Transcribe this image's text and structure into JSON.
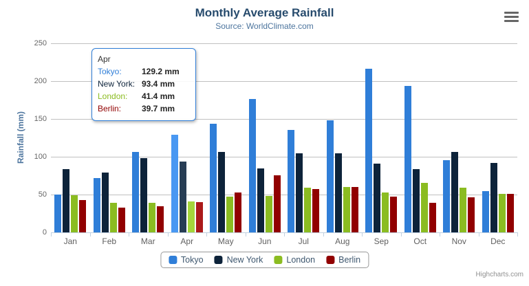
{
  "header": {
    "title": "Monthly Average Rainfall",
    "subtitle": "Source: WorldClimate.com"
  },
  "y_axis": {
    "title": "Rainfall (mm)",
    "tick_labels": [
      "0",
      "50",
      "100",
      "150",
      "200",
      "250"
    ]
  },
  "chart_data": {
    "type": "bar",
    "title": "Monthly Average Rainfall",
    "subtitle": "Source: WorldClimate.com",
    "xlabel": "",
    "ylabel": "Rainfall (mm)",
    "ylim": [
      0,
      250
    ],
    "ytick_interval": 50,
    "grid": true,
    "legend_position": "bottom",
    "categories": [
      "Jan",
      "Feb",
      "Mar",
      "Apr",
      "May",
      "Jun",
      "Jul",
      "Aug",
      "Sep",
      "Oct",
      "Nov",
      "Dec"
    ],
    "series": [
      {
        "name": "Tokyo",
        "color": "#2f7ed8",
        "hover_color": "#4998f2",
        "values": [
          49.9,
          71.5,
          106.4,
          129.2,
          144.0,
          176.0,
          135.6,
          148.5,
          216.4,
          194.1,
          95.6,
          54.4
        ]
      },
      {
        "name": "New York",
        "color": "#0d233a",
        "hover_color": "#273d54",
        "values": [
          83.6,
          78.8,
          98.5,
          93.4,
          106.0,
          84.5,
          105.0,
          104.3,
          91.2,
          83.5,
          106.6,
          92.3
        ]
      },
      {
        "name": "London",
        "color": "#8bbc21",
        "hover_color": "#a5d63b",
        "values": [
          48.9,
          38.8,
          39.3,
          41.4,
          47.0,
          48.3,
          59.0,
          59.6,
          52.4,
          65.2,
          59.3,
          51.2
        ]
      },
      {
        "name": "Berlin",
        "color": "#910000",
        "hover_color": "#ab1a1a",
        "values": [
          42.4,
          33.2,
          34.5,
          39.7,
          52.6,
          75.5,
          57.4,
          60.4,
          47.6,
          39.1,
          46.8,
          51.1
        ]
      }
    ],
    "highlighted_category": "Apr",
    "highlighted_category_index": 3
  },
  "tooltip": {
    "header": "Apr",
    "border_color": "#2f7ed8",
    "rows": [
      {
        "label": "Tokyo:",
        "value": "129.2 mm",
        "color": "#2f7ed8"
      },
      {
        "label": "New York:",
        "value": "93.4 mm",
        "color": "#0d233a"
      },
      {
        "label": "London:",
        "value": "41.4 mm",
        "color": "#8bbc21"
      },
      {
        "label": "Berlin:",
        "value": "39.7 mm",
        "color": "#910000"
      }
    ]
  },
  "credits": "Highcharts.com",
  "colors": {
    "title_text": "#274b6d",
    "subtitle_text": "#4d759e",
    "axis_label": "#666666",
    "grid_line": "#c0c0c0",
    "axis_line": "#c0d0e0",
    "legend_text": "#3e576f",
    "legend_border": "#999999",
    "credits_text": "#909090"
  }
}
